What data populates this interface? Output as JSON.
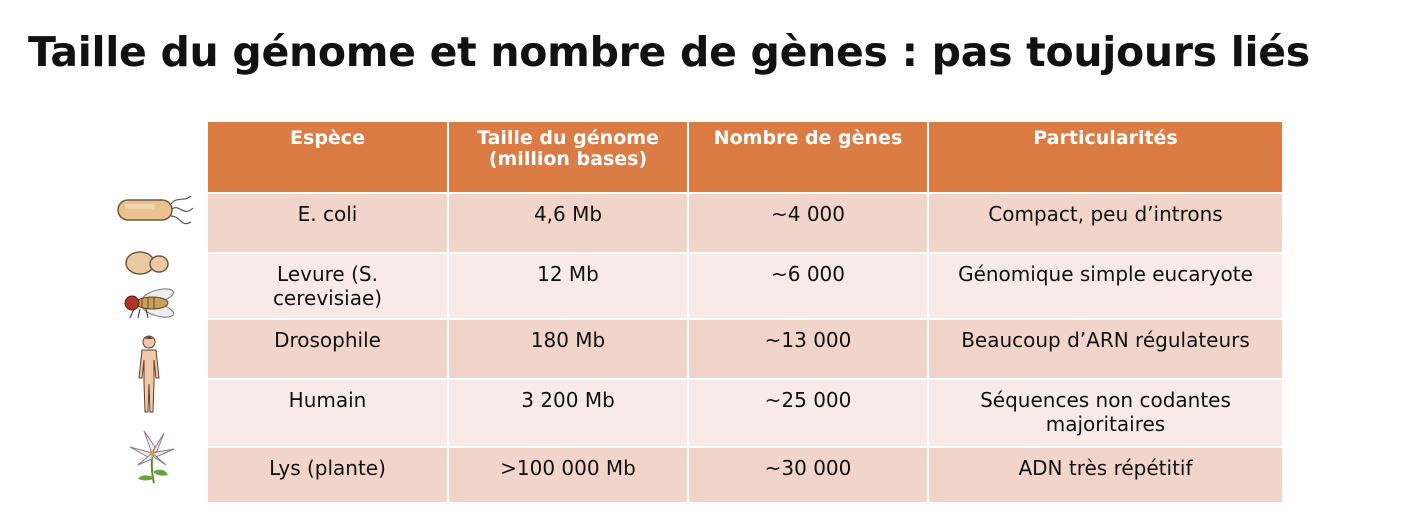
{
  "title": "Taille du génome et nombre de gènes : pas toujours liés",
  "table": {
    "headers": {
      "species": "Espèce",
      "size_line1": "Taille du génome",
      "size_line2": "(million bases)",
      "genes": "Nombre de gènes",
      "features": "Particularités"
    },
    "rows": [
      {
        "species": "E. coli",
        "size": "4,6 Mb",
        "genes": "~4 000",
        "features": "Compact, peu d’introns",
        "icon": "bacterium-icon"
      },
      {
        "species": "Levure (S. cerevisiae)",
        "size": "12 Mb",
        "genes": "~6 000",
        "features": "Génomique simple eucaryote",
        "icon": "yeast-cell-icon"
      },
      {
        "species": "Drosophile",
        "size": "180 Mb",
        "genes": "~13 000",
        "features": "Beaucoup d’ARN régulateurs",
        "icon": "fruit-fly-icon"
      },
      {
        "species": "Humain",
        "size": "3 200 Mb",
        "genes": "~25 000",
        "features": "Séquences non codantes majoritaires",
        "icon": "human-figure-icon"
      },
      {
        "species": "Lys (plante)",
        "size": ">100 000 Mb",
        "genes": "~30 000",
        "features": "ADN très répétitif",
        "icon": "lily-flower-icon"
      }
    ]
  },
  "colors": {
    "header": "#dc7c45",
    "row_dark": "#f1d5cb",
    "row_light": "#f8ebe7"
  }
}
